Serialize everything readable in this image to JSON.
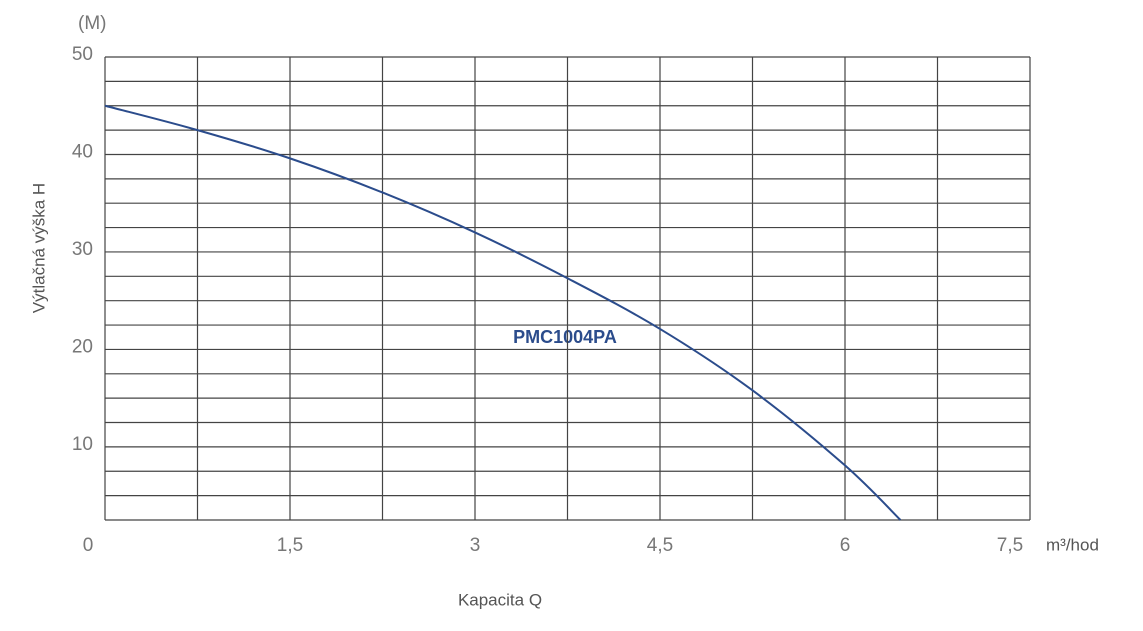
{
  "chart_data": {
    "type": "line",
    "y_unit": "(M)",
    "x_unit": "m³/hod",
    "xlabel": "Kapacita Q",
    "ylabel": "Výtlačná výška H",
    "annotation": "PMC1004PA",
    "x": [
      0,
      0.75,
      1.5,
      2.25,
      3,
      3.75,
      4.5,
      5.25,
      6,
      6.45
    ],
    "series": [
      {
        "name": "PMC1004PA",
        "color": "#2b4c8c",
        "values": [
          45,
          42.5,
          39.6,
          36.1,
          32,
          27.3,
          22.1,
          15.8,
          8.1,
          2.5
        ]
      }
    ],
    "xlim": [
      0,
      7.5
    ],
    "ylim": [
      2.5,
      50
    ],
    "xticks": [
      0,
      {
        "value": 1.5,
        "label": "1,5"
      },
      3,
      {
        "value": 4.5,
        "label": "4,5"
      },
      6,
      {
        "value": 7.5,
        "label": "7,5"
      }
    ],
    "yticks": [
      10,
      20,
      30,
      40,
      50
    ],
    "xgrid": [
      0,
      0.75,
      1.5,
      2.25,
      3,
      3.75,
      4.5,
      5.25,
      6,
      6.75,
      7.5
    ],
    "ygrid": [
      2.5,
      5,
      7.5,
      10,
      12.5,
      15,
      17.5,
      20,
      22.5,
      25,
      27.5,
      30,
      32.5,
      35,
      37.5,
      40,
      42.5,
      45,
      47.5,
      50
    ],
    "grid": true
  }
}
